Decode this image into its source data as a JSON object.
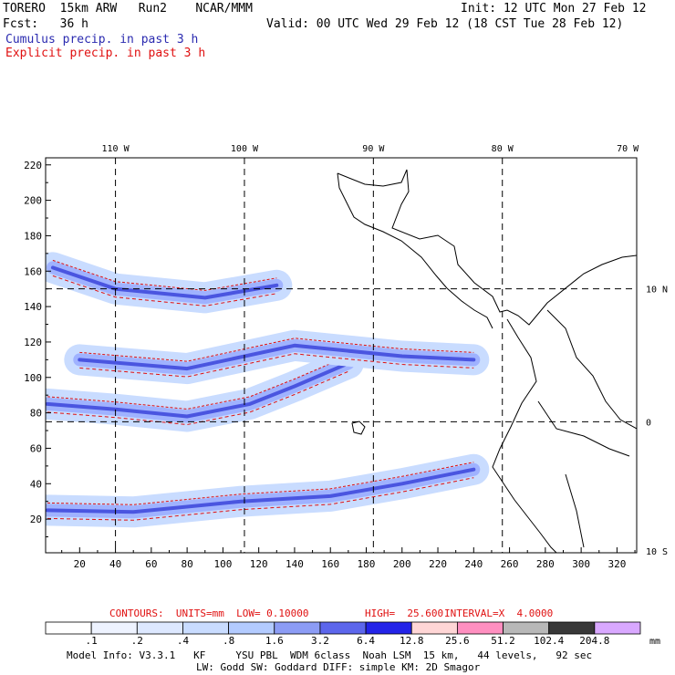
{
  "header": {
    "title_left": "TORERO  15km ARW   Run2    NCAR/MMM",
    "init": "Init: 12 UTC Mon 27 Feb 12",
    "fcst": "Fcst:   36 h",
    "valid": "Valid: 00 UTC Wed 29 Feb 12 (18 CST Tue 28 Feb 12)",
    "cumulus": "Cumulus precip. in past 3 h",
    "explicit": "Explicit precip. in past 3 h"
  },
  "contours_line": {
    "prefix": "CONTOURS:  UNITS=mm  LOW= 0.10000",
    "high": "HIGH=  25.600",
    "interval": "INTERVAL=X  4.0000"
  },
  "footer": {
    "line1": "Model Info: V3.3.1   KF     YSU PBL  WDM 6class  Noah LSM  15 km,   44 levels,   92 sec",
    "line2": "LW: Godd SW: Goddard DIFF: simple KM: 2D Smagor"
  },
  "chart_data": {
    "type": "heatmap",
    "x_grid_range": [
      1,
      331
    ],
    "y_grid_range": [
      1,
      224
    ],
    "x_ticks": [
      20,
      40,
      60,
      80,
      100,
      120,
      140,
      160,
      180,
      200,
      220,
      240,
      260,
      280,
      300,
      320
    ],
    "y_ticks": [
      20,
      40,
      60,
      80,
      100,
      120,
      140,
      160,
      180,
      200,
      220
    ],
    "lon_labels": [
      {
        "label": "110 W",
        "x": 40
      },
      {
        "label": "100 W",
        "x": 112
      },
      {
        "label": "90 W",
        "x": 184
      },
      {
        "label": "80 W",
        "x": 256
      },
      {
        "label": "70 W",
        "x": 326
      }
    ],
    "lat_labels": [
      {
        "label": "10 N",
        "y": 150
      },
      {
        "label": "0",
        "y": 75
      },
      {
        "label": "10 S",
        "y": 2
      }
    ],
    "colorbar": {
      "levels": [
        ".1",
        ".2",
        ".4",
        ".8",
        "1.6",
        "3.2",
        "6.4",
        "12.8",
        "25.6",
        "51.2",
        "102.4",
        "204.8"
      ],
      "colors": [
        "#ffffff",
        "#eef3ff",
        "#dde8ff",
        "#c9dcff",
        "#b3cbff",
        "#8c9cf5",
        "#5c66ec",
        "#2323e8",
        "#ffd6d6",
        "#ff8fc0",
        "#b8b8b8",
        "#383838",
        "#d9a8ff"
      ],
      "units": "mm"
    },
    "precip_bands": [
      {
        "id": "band-itcz-west",
        "points": [
          [
            2,
            85
          ],
          [
            40,
            82
          ],
          [
            80,
            78
          ],
          [
            115,
            85
          ],
          [
            140,
            95
          ],
          [
            170,
            108
          ]
        ],
        "intensity": "light"
      },
      {
        "id": "band-itcz-south",
        "points": [
          [
            2,
            25
          ],
          [
            50,
            24
          ],
          [
            110,
            30
          ],
          [
            160,
            33
          ],
          [
            200,
            40
          ],
          [
            240,
            48
          ]
        ],
        "intensity": "light"
      },
      {
        "id": "band-north",
        "points": [
          [
            5,
            162
          ],
          [
            40,
            150
          ],
          [
            90,
            145
          ],
          [
            130,
            152
          ]
        ],
        "intensity": "light"
      },
      {
        "id": "band-central",
        "points": [
          [
            20,
            110
          ],
          [
            80,
            105
          ],
          [
            140,
            118
          ],
          [
            200,
            112
          ],
          [
            240,
            110
          ]
        ],
        "intensity": "light"
      }
    ],
    "contour_low": 0.1,
    "contour_high": 25.6,
    "contour_interval": 4.0,
    "units": "mm"
  }
}
